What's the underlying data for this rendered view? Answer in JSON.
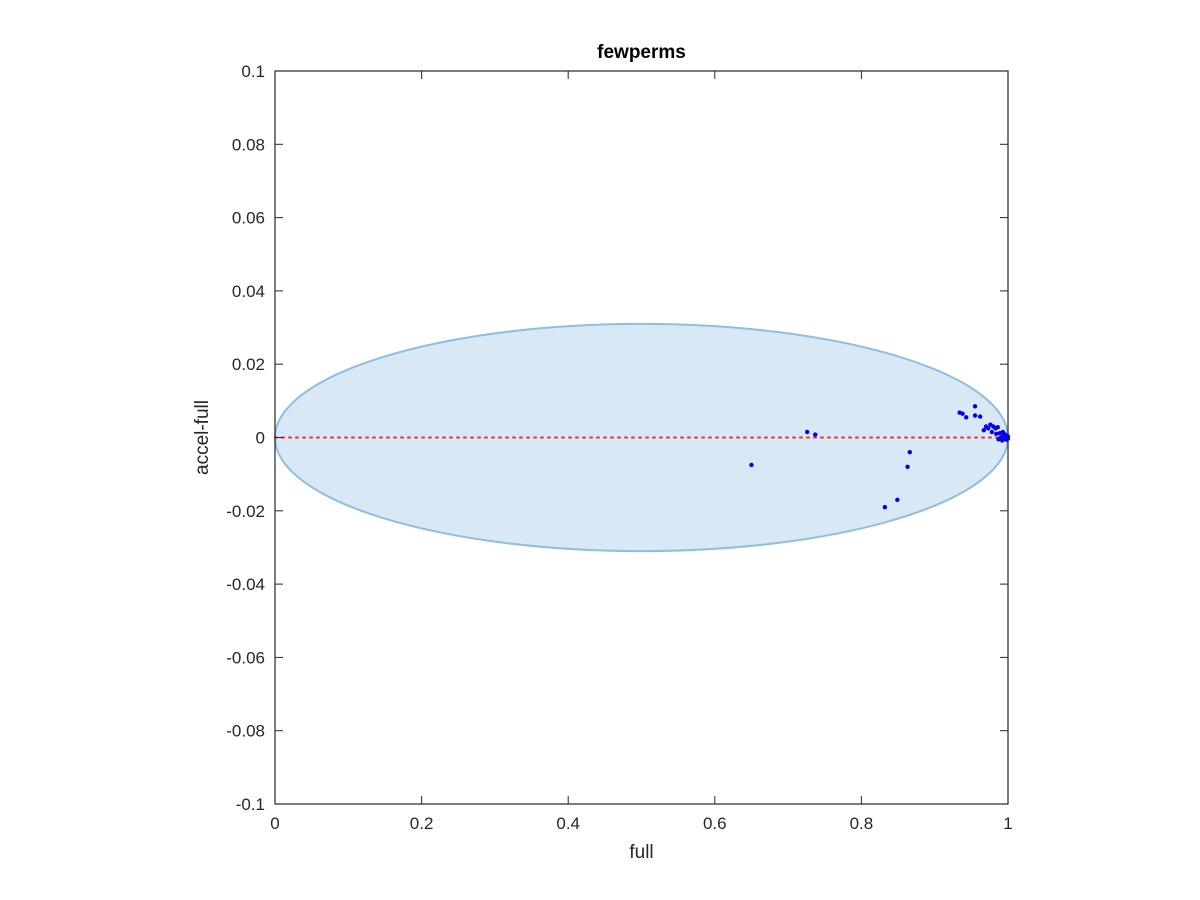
{
  "chart_data": {
    "type": "scatter",
    "title": "fewperms",
    "xlabel": "full",
    "ylabel": "accel-full",
    "xlim": [
      0,
      1
    ],
    "ylim": [
      -0.1,
      0.1
    ],
    "xticks": [
      0,
      0.2,
      0.4,
      0.6,
      0.8,
      1
    ],
    "xtick_labels": [
      "0",
      "0.2",
      "0.4",
      "0.6",
      "0.8",
      "1"
    ],
    "yticks": [
      -0.1,
      -0.08,
      -0.06,
      -0.04,
      -0.02,
      0,
      0.02,
      0.04,
      0.06,
      0.08,
      0.1
    ],
    "ytick_labels": [
      "-0.1",
      "-0.08",
      "-0.06",
      "-0.04",
      "-0.02",
      "0",
      "0.02",
      "0.04",
      "0.06",
      "0.08",
      "0.1"
    ],
    "grid": false,
    "ellipse": {
      "center_x": 0.5,
      "center_y": 0,
      "semi_axis_x": 0.5,
      "semi_axis_y": 0.031,
      "fill": "#d9e8f5",
      "stroke": "#8fbedf"
    },
    "zero_line": {
      "y": 0,
      "color": "#ff2a2a",
      "style": "dotted"
    },
    "points_color": "#0000ee",
    "points": [
      {
        "x": 0.65,
        "y": -0.0075
      },
      {
        "x": 0.726,
        "y": 0.0015
      },
      {
        "x": 0.737,
        "y": 0.0008
      },
      {
        "x": 0.832,
        "y": -0.019
      },
      {
        "x": 0.849,
        "y": -0.017
      },
      {
        "x": 0.863,
        "y": -0.008
      },
      {
        "x": 0.866,
        "y": -0.004
      },
      {
        "x": 0.934,
        "y": 0.0068
      },
      {
        "x": 0.938,
        "y": 0.0065
      },
      {
        "x": 0.943,
        "y": 0.0055
      },
      {
        "x": 0.955,
        "y": 0.0085
      },
      {
        "x": 0.955,
        "y": 0.006
      },
      {
        "x": 0.962,
        "y": 0.0057
      },
      {
        "x": 0.967,
        "y": 0.002
      },
      {
        "x": 0.97,
        "y": 0.003
      },
      {
        "x": 0.973,
        "y": 0.0025
      },
      {
        "x": 0.976,
        "y": 0.0035
      },
      {
        "x": 0.978,
        "y": 0.0015
      },
      {
        "x": 0.98,
        "y": 0.003
      },
      {
        "x": 0.983,
        "y": 0.0025
      },
      {
        "x": 0.984,
        "y": 0.001
      },
      {
        "x": 0.986,
        "y": 0.0028
      },
      {
        "x": 0.987,
        "y": -0.0005
      },
      {
        "x": 0.989,
        "y": 0.0012
      },
      {
        "x": 0.99,
        "y": 0.0
      },
      {
        "x": 0.992,
        "y": -0.0008
      },
      {
        "x": 0.993,
        "y": 0.0015
      },
      {
        "x": 0.994,
        "y": 0.0005
      },
      {
        "x": 0.995,
        "y": -0.0004
      },
      {
        "x": 0.996,
        "y": 0.0008
      },
      {
        "x": 0.997,
        "y": 0.0002
      },
      {
        "x": 0.998,
        "y": -0.0006
      },
      {
        "x": 0.998,
        "y": 0.0004
      },
      {
        "x": 0.999,
        "y": 0.0
      },
      {
        "x": 1.0,
        "y": 0.0003
      },
      {
        "x": 1.0,
        "y": -0.0003
      }
    ]
  }
}
